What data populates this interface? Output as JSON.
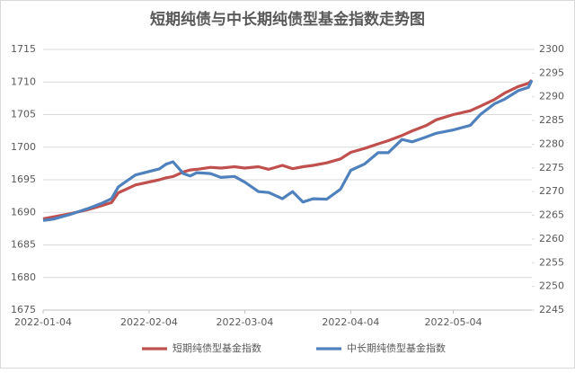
{
  "chart_data": {
    "type": "line",
    "title": "短期纯债与中长期纯债型基金指数走势图",
    "x": [
      "2022-01-04",
      "2022-01-07",
      "2022-01-12",
      "2022-01-17",
      "2022-01-21",
      "2022-01-24",
      "2022-01-26",
      "2022-01-31",
      "2022-02-07",
      "2022-02-09",
      "2022-02-11",
      "2022-02-14",
      "2022-02-16",
      "2022-02-18",
      "2022-02-22",
      "2022-02-25",
      "2022-03-01",
      "2022-03-04",
      "2022-03-08",
      "2022-03-11",
      "2022-03-15",
      "2022-03-18",
      "2022-03-21",
      "2022-03-24",
      "2022-03-28",
      "2022-04-01",
      "2022-04-04",
      "2022-04-08",
      "2022-04-12",
      "2022-04-15",
      "2022-04-19",
      "2022-04-22",
      "2022-04-26",
      "2022-04-29",
      "2022-05-04",
      "2022-05-09",
      "2022-05-12",
      "2022-05-16",
      "2022-05-19",
      "2022-05-23",
      "2022-05-26",
      "2022-05-27"
    ],
    "series": [
      {
        "name": "短期纯债型基金指数",
        "color": "#c0504d",
        "values": [
          1689.0,
          1689.3,
          1689.8,
          1690.4,
          1691.0,
          1691.5,
          1693.0,
          1694.2,
          1695.0,
          1695.3,
          1695.5,
          1696.2,
          1696.5,
          1696.6,
          1696.9,
          1696.8,
          1697.0,
          1696.8,
          1697.0,
          1696.6,
          1697.2,
          1696.7,
          1697.0,
          1697.2,
          1697.6,
          1698.2,
          1699.2,
          1699.8,
          1700.5,
          1701.0,
          1701.8,
          1702.5,
          1703.3,
          1704.2,
          1705.0,
          1705.6,
          1706.3,
          1707.3,
          1708.3,
          1709.3,
          1709.8,
          1710.3
        ]
      },
      {
        "name": "中长期纯债型基金指数",
        "color": "#4f81bd",
        "axis": "y2",
        "values": [
          2263.9,
          2264.2,
          2265.2,
          2266.4,
          2267.5,
          2268.5,
          2271.0,
          2273.5,
          2274.8,
          2275.8,
          2276.3,
          2273.8,
          2273.3,
          2274.0,
          2273.8,
          2273.0,
          2273.2,
          2272.0,
          2270.0,
          2269.8,
          2268.5,
          2270.0,
          2267.8,
          2268.5,
          2268.4,
          2270.5,
          2274.5,
          2275.8,
          2278.2,
          2278.2,
          2281.0,
          2280.5,
          2281.5,
          2282.3,
          2283.0,
          2284.0,
          2286.3,
          2288.5,
          2289.5,
          2291.3,
          2292.0,
          2293.5
        ]
      }
    ],
    "xlim": [
      "2022-01-04",
      "2022-05-27"
    ],
    "xticks": [
      "2022-01-04",
      "2022-02-04",
      "2022-03-04",
      "2022-04-04",
      "2022-05-04"
    ],
    "ylim": [
      1675,
      1715
    ],
    "yticks": [
      1675,
      1680,
      1685,
      1690,
      1695,
      1700,
      1705,
      1710,
      1715
    ],
    "y2lim": [
      2245,
      2300
    ],
    "y2ticks": [
      2245,
      2250,
      2255,
      2260,
      2265,
      2270,
      2275,
      2280,
      2285,
      2290,
      2295,
      2300
    ],
    "grid": true,
    "legend": "bottom"
  }
}
